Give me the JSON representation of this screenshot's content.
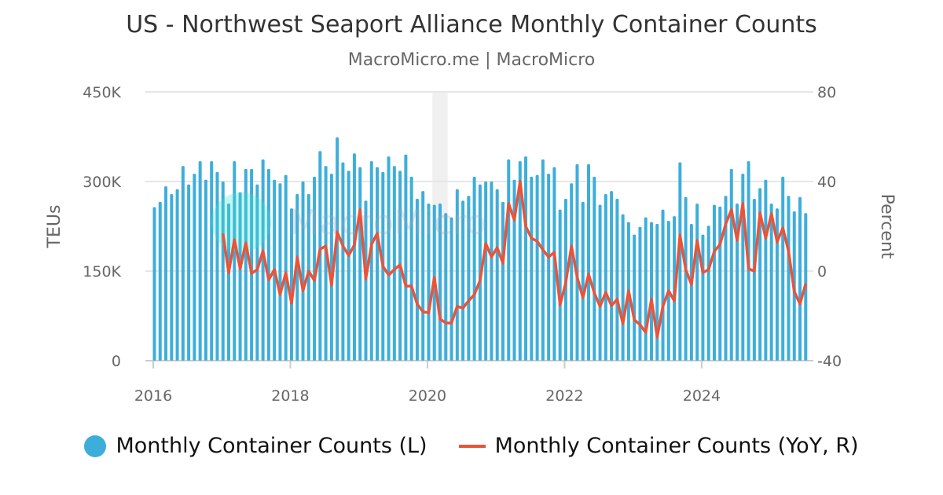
{
  "title": "US - Northwest Seaport Alliance Monthly Container Counts",
  "subtitle": "MacroMicro.me | MacroMicro",
  "watermark": "MacroMicro",
  "chart_data": {
    "type": "bar+line",
    "title": "US - Northwest Seaport Alliance Monthly Container Counts",
    "subtitle": "MacroMicro.me | MacroMicro",
    "ylabel_left": "TEUs",
    "ylabel_right": "Percent",
    "ylim_left": [
      0,
      450000
    ],
    "ylim_right": [
      -40,
      80
    ],
    "yticks_left": [
      "0",
      "150K",
      "300K",
      "450K"
    ],
    "yticks_right": [
      "-40",
      "0",
      "40",
      "80"
    ],
    "xticks": [
      "2016",
      "2018",
      "2020",
      "2022",
      "2024"
    ],
    "grid": true,
    "legend_position": "bottom",
    "shaded_period": [
      "2020-02",
      "2020-04"
    ],
    "x": [
      "2016-01",
      "2016-02",
      "2016-03",
      "2016-04",
      "2016-05",
      "2016-06",
      "2016-07",
      "2016-08",
      "2016-09",
      "2016-10",
      "2016-11",
      "2016-12",
      "2017-01",
      "2017-02",
      "2017-03",
      "2017-04",
      "2017-05",
      "2017-06",
      "2017-07",
      "2017-08",
      "2017-09",
      "2017-10",
      "2017-11",
      "2017-12",
      "2018-01",
      "2018-02",
      "2018-03",
      "2018-04",
      "2018-05",
      "2018-06",
      "2018-07",
      "2018-08",
      "2018-09",
      "2018-10",
      "2018-11",
      "2018-12",
      "2019-01",
      "2019-02",
      "2019-03",
      "2019-04",
      "2019-05",
      "2019-06",
      "2019-07",
      "2019-08",
      "2019-09",
      "2019-10",
      "2019-11",
      "2019-12",
      "2020-01",
      "2020-02",
      "2020-03",
      "2020-04",
      "2020-05",
      "2020-06",
      "2020-07",
      "2020-08",
      "2020-09",
      "2020-10",
      "2020-11",
      "2020-12",
      "2021-01",
      "2021-02",
      "2021-03",
      "2021-04",
      "2021-05",
      "2021-06",
      "2021-07",
      "2021-08",
      "2021-09",
      "2021-10",
      "2021-11",
      "2021-12",
      "2022-01",
      "2022-02",
      "2022-03",
      "2022-04",
      "2022-05",
      "2022-06",
      "2022-07",
      "2022-08",
      "2022-09",
      "2022-10",
      "2022-11",
      "2022-12",
      "2023-01",
      "2023-02",
      "2023-03",
      "2023-04",
      "2023-05",
      "2023-06",
      "2023-07",
      "2023-08",
      "2023-09",
      "2023-10",
      "2023-11",
      "2023-12",
      "2024-01",
      "2024-02",
      "2024-03",
      "2024-04",
      "2024-05",
      "2024-06",
      "2024-07",
      "2024-08",
      "2024-09",
      "2024-10",
      "2024-11",
      "2024-12",
      "2025-01",
      "2025-02",
      "2025-03",
      "2025-04",
      "2025-05",
      "2025-06",
      "2025-07"
    ],
    "series": [
      {
        "name": "Monthly Container Counts (L)",
        "type": "bar",
        "axis": "left",
        "color": "#3daedb",
        "values": [
          257000,
          266000,
          292000,
          279000,
          287000,
          326000,
          295000,
          313000,
          334000,
          303000,
          334000,
          316000,
          300000,
          263000,
          334000,
          282000,
          321000,
          321000,
          295000,
          337000,
          321000,
          303000,
          297000,
          311000,
          255000,
          279000,
          300000,
          279000,
          308000,
          351000,
          326000,
          313000,
          374000,
          332000,
          318000,
          347000,
          324000,
          268000,
          334000,
          324000,
          316000,
          342000,
          326000,
          318000,
          345000,
          308000,
          271000,
          284000,
          263000,
          261000,
          263000,
          247000,
          240000,
          287000,
          268000,
          276000,
          308000,
          295000,
          300000,
          300000,
          287000,
          266000,
          337000,
          303000,
          334000,
          342000,
          308000,
          311000,
          337000,
          313000,
          324000,
          253000,
          271000,
          297000,
          329000,
          266000,
          329000,
          308000,
          261000,
          279000,
          284000,
          271000,
          245000,
          232000,
          211000,
          224000,
          240000,
          232000,
          229000,
          253000,
          234000,
          242000,
          332000,
          274000,
          229000,
          263000,
          211000,
          226000,
          261000,
          258000,
          276000,
          321000,
          263000,
          313000,
          334000,
          271000,
          289000,
          303000,
          263000,
          255000,
          308000,
          276000,
          250000,
          274000,
          247000
        ]
      },
      {
        "name": "Monthly Container Counts (YoY, R)",
        "type": "line",
        "axis": "right",
        "color": "#e8543a",
        "values": [
          null,
          null,
          null,
          null,
          null,
          null,
          null,
          null,
          null,
          null,
          null,
          null,
          16.8,
          -0.7,
          14.0,
          1.0,
          12.6,
          -1.0,
          0.7,
          9.0,
          -3.9,
          0.7,
          -10.5,
          -0.7,
          -14.4,
          6.3,
          -8.8,
          0.0,
          -4.2,
          9.8,
          11.2,
          -6.3,
          17.5,
          11.2,
          7.0,
          11.6,
          27.4,
          -3.5,
          11.9,
          16.8,
          2.1,
          -1.8,
          0.7,
          2.8,
          -6.7,
          -6.7,
          -14.7,
          -18.2,
          -18.6,
          -2.8,
          -21.4,
          -23.2,
          -23.2,
          -15.8,
          -16.5,
          -13.3,
          -10.5,
          -4.2,
          12.3,
          6.3,
          10.5,
          3.5,
          30.2,
          22.8,
          40.0,
          20.0,
          14.7,
          13.3,
          9.5,
          6.3,
          8.4,
          -15.1,
          -5.3,
          11.2,
          -2.8,
          -11.9,
          -1.4,
          -9.8,
          -15.8,
          -9.5,
          -15.4,
          -12.6,
          -23.5,
          -8.8,
          -21.8,
          -23.9,
          -27.4,
          -12.6,
          -29.5,
          -15.8,
          -8.8,
          -13.3,
          16.1,
          0.7,
          -6.0,
          13.7,
          -0.7,
          0.7,
          8.8,
          11.9,
          21.0,
          27.4,
          13.7,
          30.2,
          1.0,
          0.0,
          26.0,
          14.7,
          25.6,
          13.0,
          19.3,
          8.8,
          -9.1,
          -14.7,
          -5.6
        ]
      }
    ]
  }
}
